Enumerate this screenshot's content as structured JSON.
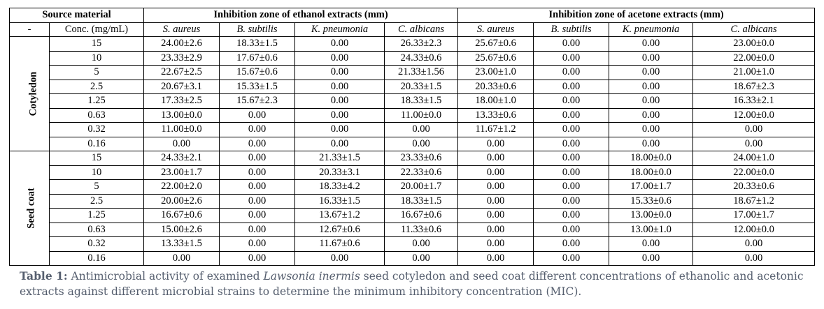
{
  "header": {
    "source_material": "Source material",
    "ethanol_title": "Inhibition zone of ethanol extracts (mm)",
    "acetone_title": "Inhibition zone of acetone extracts (mm)",
    "dash": "-",
    "conc": "Conc. (mg/mL)",
    "organisms": [
      "S. aureus",
      "B. subtilis",
      "K. pneumonia",
      "C. albicans"
    ]
  },
  "groups": [
    {
      "name": "Cotyledon",
      "rows": [
        [
          "15",
          "24.00±2.6",
          "18.33±1.5",
          "0.00",
          "26.33±2.3",
          "25.67±0.6",
          "0.00",
          "0.00",
          "23.00±0.0"
        ],
        [
          "10",
          "23.33±2.9",
          "17.67±0.6",
          "0.00",
          "24.33±0.6",
          "25.67±0.6",
          "0.00",
          "0.00",
          "22.00±0.0"
        ],
        [
          "5",
          "22.67±2.5",
          "15.67±0.6",
          "0.00",
          "21.33±1.56",
          "23.00±1.0",
          "0.00",
          "0.00",
          "21.00±1.0"
        ],
        [
          "2.5",
          "20.67±3.1",
          "15.33±1.5",
          "0.00",
          "20.33±1.5",
          "20.33±0.6",
          "0.00",
          "0.00",
          "18.67±2.3"
        ],
        [
          "1.25",
          "17.33±2.5",
          "15.67±2.3",
          "0.00",
          "18.33±1.5",
          "18.00±1.0",
          "0.00",
          "0.00",
          "16.33±2.1"
        ],
        [
          "0.63",
          "13.00±0.0",
          "0.00",
          "0.00",
          "11.00±0.0",
          "13.33±0.6",
          "0.00",
          "0.00",
          "12.00±0.0"
        ],
        [
          "0.32",
          "11.00±0.0",
          "0.00",
          "0.00",
          "0.00",
          "11.67±1.2",
          "0.00",
          "0.00",
          "0.00"
        ],
        [
          "0.16",
          "0.00",
          "0.00",
          "0.00",
          "0.00",
          "0.00",
          "0.00",
          "0.00",
          "0.00"
        ]
      ]
    },
    {
      "name": "Seed coat",
      "rows": [
        [
          "15",
          "24.33±2.1",
          "0.00",
          "21.33±1.5",
          "23.33±0.6",
          "0.00",
          "0.00",
          "18.00±0.0",
          "24.00±1.0"
        ],
        [
          "10",
          "23.00±1.7",
          "0.00",
          "20.33±3.1",
          "22.33±0.6",
          "0.00",
          "0.00",
          "18.00±0.0",
          "22.00±0.0"
        ],
        [
          "5",
          "22.00±2.0",
          "0.00",
          "18.33±4.2",
          "20.00±1.7",
          "0.00",
          "0.00",
          "17.00±1.7",
          "20.33±0.6"
        ],
        [
          "2.5",
          "20.00±2.6",
          "0.00",
          "16.33±1.5",
          "18.33±1.5",
          "0.00",
          "0.00",
          "15.33±0.6",
          "18.67±1.2"
        ],
        [
          "1.25",
          "16.67±0.6",
          "0.00",
          "13.67±1.2",
          "16.67±0.6",
          "0.00",
          "0.00",
          "13.00±0.0",
          "17.00±1.7"
        ],
        [
          "0.63",
          "15.00±2.6",
          "0.00",
          "12.67±0.6",
          "11.33±0.6",
          "0.00",
          "0.00",
          "13.00±1.0",
          "12.00±0.0"
        ],
        [
          "0.32",
          "13.33±1.5",
          "0.00",
          "11.67±0.6",
          "0.00",
          "0.00",
          "0.00",
          "0.00",
          "0.00"
        ],
        [
          "0.16",
          "0.00",
          "0.00",
          "0.00",
          "0.00",
          "0.00",
          "0.00",
          "0.00",
          "0.00"
        ]
      ]
    }
  ],
  "caption": {
    "label": "Table 1:",
    "text_a": " Antimicrobial activity of examined ",
    "species": "Lawsonia inermis",
    "text_b": " seed cotyledon and seed coat different concentrations of ethanolic and acetonic extracts against different microbial strains to determine the minimum inhibitory concentration (MIC)."
  }
}
